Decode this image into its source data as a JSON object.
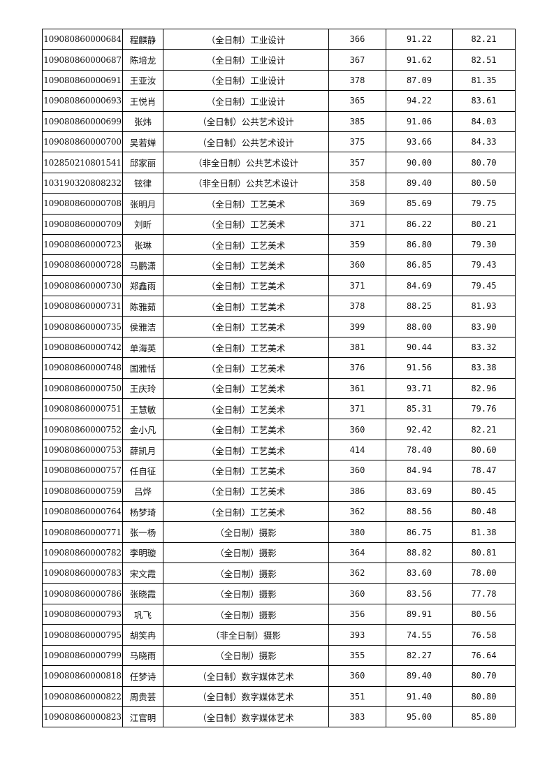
{
  "rows": [
    [
      "109080860000684",
      "程麒静",
      "（全日制）工业设计",
      "366",
      "91.22",
      "82.21"
    ],
    [
      "109080860000687",
      "陈培龙",
      "（全日制）工业设计",
      "367",
      "91.62",
      "82.51"
    ],
    [
      "109080860000691",
      "王亚汝",
      "（全日制）工业设计",
      "378",
      "87.09",
      "81.35"
    ],
    [
      "109080860000693",
      "王悦肖",
      "（全日制）工业设计",
      "365",
      "94.22",
      "83.61"
    ],
    [
      "109080860000699",
      "张炜",
      "（全日制）公共艺术设计",
      "385",
      "91.06",
      "84.03"
    ],
    [
      "109080860000700",
      "吴若婵",
      "（全日制）公共艺术设计",
      "375",
      "93.66",
      "84.33"
    ],
    [
      "102850210801541",
      "邱家丽",
      "（非全日制）公共艺术设计",
      "357",
      "90.00",
      "80.70"
    ],
    [
      "103190320808232",
      "铉律",
      "（非全日制）公共艺术设计",
      "358",
      "89.40",
      "80.50"
    ],
    [
      "109080860000708",
      "张明月",
      "（全日制）工艺美术",
      "369",
      "85.69",
      "79.75"
    ],
    [
      "109080860000709",
      "刘昕",
      "（全日制）工艺美术",
      "371",
      "86.22",
      "80.21"
    ],
    [
      "109080860000723",
      "张琳",
      "（全日制）工艺美术",
      "359",
      "86.80",
      "79.30"
    ],
    [
      "109080860000728",
      "马鹏潇",
      "（全日制）工艺美术",
      "360",
      "86.85",
      "79.43"
    ],
    [
      "109080860000730",
      "郑鑫雨",
      "（全日制）工艺美术",
      "371",
      "84.69",
      "79.45"
    ],
    [
      "109080860000731",
      "陈雅茹",
      "（全日制）工艺美术",
      "378",
      "88.25",
      "81.93"
    ],
    [
      "109080860000735",
      "侯雅洁",
      "（全日制）工艺美术",
      "399",
      "88.00",
      "83.90"
    ],
    [
      "109080860000742",
      "单海英",
      "（全日制）工艺美术",
      "381",
      "90.44",
      "83.32"
    ],
    [
      "109080860000748",
      "国雅恬",
      "（全日制）工艺美术",
      "376",
      "91.56",
      "83.38"
    ],
    [
      "109080860000750",
      "王庆玲",
      "（全日制）工艺美术",
      "361",
      "93.71",
      "82.96"
    ],
    [
      "109080860000751",
      "王慧敏",
      "（全日制）工艺美术",
      "371",
      "85.31",
      "79.76"
    ],
    [
      "109080860000752",
      "金小凡",
      "（全日制）工艺美术",
      "360",
      "92.42",
      "82.21"
    ],
    [
      "109080860000753",
      "薛凯月",
      "（全日制）工艺美术",
      "414",
      "78.40",
      "80.60"
    ],
    [
      "109080860000757",
      "任自征",
      "（全日制）工艺美术",
      "360",
      "84.94",
      "78.47"
    ],
    [
      "109080860000759",
      "吕烨",
      "（全日制）工艺美术",
      "386",
      "83.69",
      "80.45"
    ],
    [
      "109080860000764",
      "杨梦琦",
      "（全日制）工艺美术",
      "362",
      "88.56",
      "80.48"
    ],
    [
      "109080860000771",
      "张一杨",
      "（全日制）摄影",
      "380",
      "86.75",
      "81.38"
    ],
    [
      "109080860000782",
      "李明璇",
      "（全日制）摄影",
      "364",
      "88.82",
      "80.81"
    ],
    [
      "109080860000783",
      "宋文霞",
      "（全日制）摄影",
      "362",
      "83.60",
      "78.00"
    ],
    [
      "109080860000786",
      "张晓霞",
      "（全日制）摄影",
      "360",
      "83.56",
      "77.78"
    ],
    [
      "109080860000793",
      "巩飞",
      "（全日制）摄影",
      "356",
      "89.91",
      "80.56"
    ],
    [
      "109080860000795",
      "胡笑冉",
      "（非全日制）摄影",
      "393",
      "74.55",
      "76.58"
    ],
    [
      "109080860000799",
      "马晓雨",
      "（全日制）摄影",
      "355",
      "82.27",
      "76.64"
    ],
    [
      "109080860000818",
      "任梦诗",
      "（全日制）数字媒体艺术",
      "360",
      "89.40",
      "80.70"
    ],
    [
      "109080860000822",
      "周贵芸",
      "（全日制）数字媒体艺术",
      "351",
      "91.40",
      "80.80"
    ],
    [
      "109080860000823",
      "江官明",
      "（全日制）数字媒体艺术",
      "383",
      "95.00",
      "85.80"
    ]
  ]
}
